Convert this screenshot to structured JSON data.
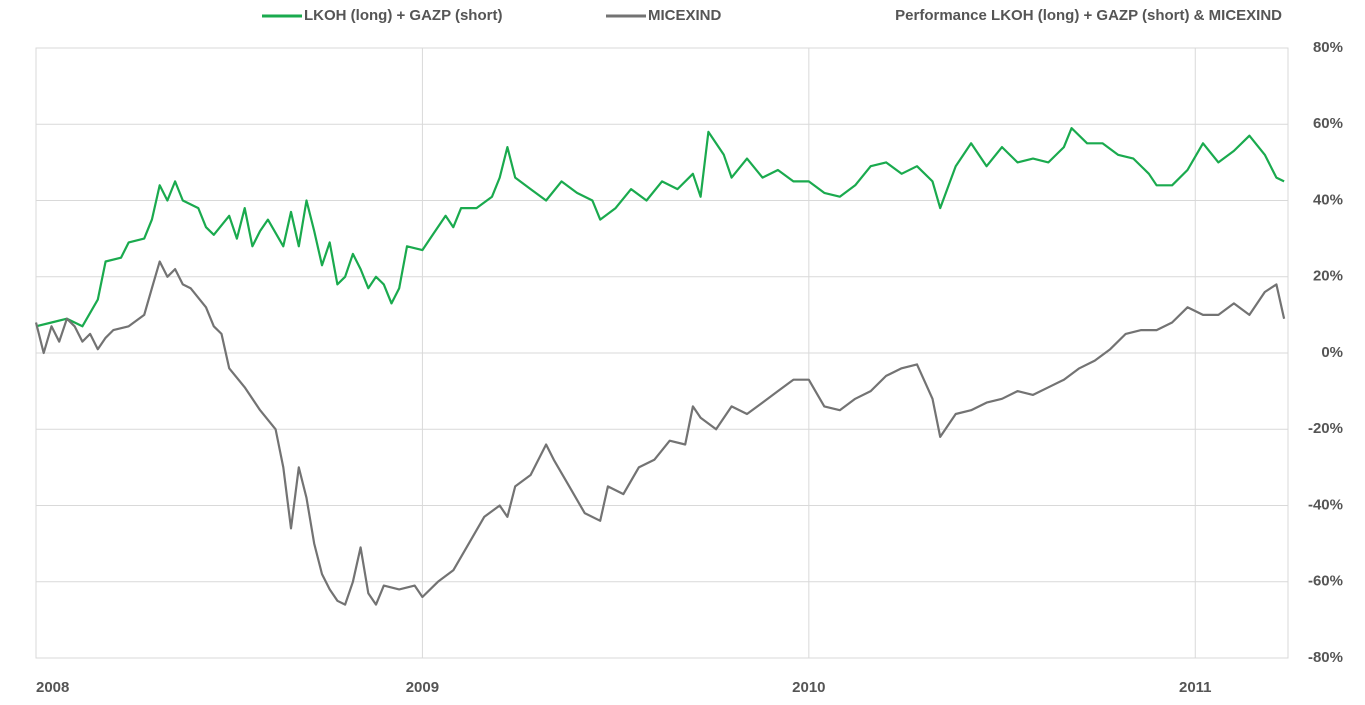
{
  "chart_data": {
    "type": "line",
    "title": "Performance LKOH (long) + GAZP (short) & MICEXIND",
    "xlim": [
      2008,
      2011.24
    ],
    "xticks": [
      2008,
      2009,
      2010,
      2011
    ],
    "ylim": [
      -80,
      80
    ],
    "yticks": [
      {
        "value": 80,
        "label": "80%"
      },
      {
        "value": 60,
        "label": "60%"
      },
      {
        "value": 40,
        "label": "40%"
      },
      {
        "value": 20,
        "label": "20%"
      },
      {
        "value": 0,
        "label": "0%"
      },
      {
        "value": -20,
        "label": "-20%"
      },
      {
        "value": -40,
        "label": "-40%"
      },
      {
        "value": -60,
        "label": "-60%"
      },
      {
        "value": -80,
        "label": "-80%"
      }
    ],
    "grid": true,
    "legend": "top",
    "series": [
      {
        "name": "LKOH (long)  + GAZP  (short)",
        "color": "#1aaa4e",
        "x": [
          2008.0,
          2008.04,
          2008.08,
          2008.12,
          2008.16,
          2008.18,
          2008.22,
          2008.24,
          2008.28,
          2008.3,
          2008.32,
          2008.34,
          2008.36,
          2008.38,
          2008.42,
          2008.44,
          2008.46,
          2008.5,
          2008.52,
          2008.54,
          2008.56,
          2008.58,
          2008.6,
          2008.64,
          2008.66,
          2008.68,
          2008.7,
          2008.72,
          2008.74,
          2008.76,
          2008.78,
          2008.8,
          2008.82,
          2008.84,
          2008.86,
          2008.88,
          2008.9,
          2008.92,
          2008.94,
          2008.96,
          2009.0,
          2009.02,
          2009.06,
          2009.08,
          2009.1,
          2009.14,
          2009.18,
          2009.2,
          2009.22,
          2009.24,
          2009.28,
          2009.32,
          2009.36,
          2009.4,
          2009.44,
          2009.46,
          2009.5,
          2009.54,
          2009.58,
          2009.62,
          2009.66,
          2009.7,
          2009.72,
          2009.74,
          2009.78,
          2009.8,
          2009.84,
          2009.88,
          2009.92,
          2009.96,
          2010.0,
          2010.04,
          2010.08,
          2010.12,
          2010.16,
          2010.2,
          2010.24,
          2010.28,
          2010.32,
          2010.34,
          2010.38,
          2010.42,
          2010.46,
          2010.5,
          2010.54,
          2010.58,
          2010.62,
          2010.66,
          2010.68,
          2010.72,
          2010.76,
          2010.8,
          2010.84,
          2010.88,
          2010.9,
          2010.94,
          2010.98,
          2011.02,
          2011.06,
          2011.1,
          2011.14,
          2011.18,
          2011.21,
          2011.23
        ],
        "values": [
          7,
          8,
          9,
          7,
          14,
          24,
          25,
          29,
          30,
          35,
          44,
          40,
          45,
          40,
          38,
          33,
          31,
          36,
          30,
          38,
          28,
          32,
          35,
          28,
          37,
          28,
          40,
          32,
          23,
          29,
          18,
          20,
          26,
          22,
          17,
          20,
          18,
          13,
          17,
          28,
          27,
          30,
          36,
          33,
          38,
          38,
          41,
          46,
          54,
          46,
          43,
          40,
          45,
          42,
          40,
          35,
          38,
          43,
          40,
          45,
          43,
          47,
          41,
          58,
          52,
          46,
          51,
          46,
          48,
          45,
          45,
          42,
          41,
          44,
          49,
          50,
          47,
          49,
          45,
          38,
          49,
          55,
          49,
          54,
          50,
          51,
          50,
          54,
          59,
          55,
          55,
          52,
          51,
          47,
          44,
          44,
          48,
          55,
          50,
          53,
          57,
          52,
          46,
          45
        ]
      },
      {
        "name": "MICEXIND",
        "color": "#737373",
        "x": [
          2008.0,
          2008.02,
          2008.04,
          2008.06,
          2008.08,
          2008.1,
          2008.12,
          2008.14,
          2008.16,
          2008.18,
          2008.2,
          2008.24,
          2008.28,
          2008.3,
          2008.32,
          2008.34,
          2008.36,
          2008.38,
          2008.4,
          2008.44,
          2008.46,
          2008.48,
          2008.5,
          2008.54,
          2008.58,
          2008.62,
          2008.64,
          2008.66,
          2008.68,
          2008.7,
          2008.72,
          2008.74,
          2008.76,
          2008.78,
          2008.8,
          2008.82,
          2008.84,
          2008.86,
          2008.88,
          2008.9,
          2008.94,
          2008.98,
          2009.0,
          2009.04,
          2009.08,
          2009.12,
          2009.16,
          2009.2,
          2009.22,
          2009.24,
          2009.28,
          2009.32,
          2009.34,
          2009.38,
          2009.42,
          2009.46,
          2009.48,
          2009.52,
          2009.56,
          2009.6,
          2009.64,
          2009.68,
          2009.7,
          2009.72,
          2009.76,
          2009.8,
          2009.84,
          2009.88,
          2009.92,
          2009.96,
          2010.0,
          2010.04,
          2010.08,
          2010.12,
          2010.16,
          2010.2,
          2010.24,
          2010.28,
          2010.32,
          2010.34,
          2010.38,
          2010.42,
          2010.46,
          2010.5,
          2010.54,
          2010.58,
          2010.62,
          2010.66,
          2010.7,
          2010.74,
          2010.78,
          2010.82,
          2010.86,
          2010.9,
          2010.94,
          2010.98,
          2011.02,
          2011.06,
          2011.1,
          2011.14,
          2011.18,
          2011.21,
          2011.23
        ],
        "values": [
          8,
          0,
          7,
          3,
          9,
          7,
          3,
          5,
          1,
          4,
          6,
          7,
          10,
          17,
          24,
          20,
          22,
          18,
          17,
          12,
          7,
          5,
          -4,
          -9,
          -15,
          -20,
          -30,
          -46,
          -30,
          -38,
          -50,
          -58,
          -62,
          -65,
          -66,
          -60,
          -51,
          -63,
          -66,
          -61,
          -62,
          -61,
          -64,
          -60,
          -57,
          -50,
          -43,
          -40,
          -43,
          -35,
          -32,
          -24,
          -28,
          -35,
          -42,
          -44,
          -35,
          -37,
          -30,
          -28,
          -23,
          -24,
          -14,
          -17,
          -20,
          -14,
          -16,
          -13,
          -10,
          -7,
          -7,
          -14,
          -15,
          -12,
          -10,
          -6,
          -4,
          -3,
          -12,
          -22,
          -16,
          -15,
          -13,
          -12,
          -10,
          -11,
          -9,
          -7,
          -4,
          -2,
          1,
          5,
          6,
          6,
          8,
          12,
          10,
          10,
          13,
          10,
          16,
          18,
          9
        ]
      }
    ]
  }
}
